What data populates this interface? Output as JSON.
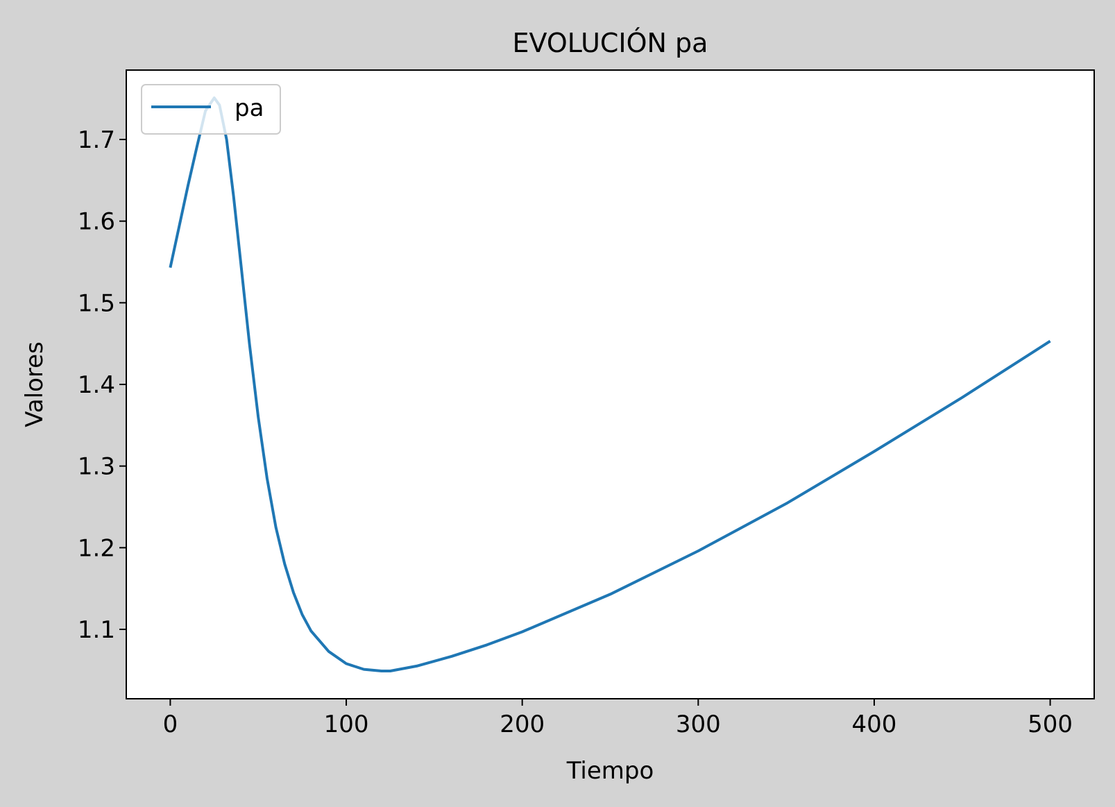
{
  "figure": {
    "background": "#d3d3d3"
  },
  "chart_data": {
    "type": "line",
    "title": "EVOLUCIÓN pa",
    "xlabel": "Tiempo",
    "ylabel": "Valores",
    "xlim": [
      -25,
      525
    ],
    "ylim": [
      1.015,
      1.785
    ],
    "xticks": [
      0,
      100,
      200,
      300,
      400,
      500
    ],
    "xtick_labels": [
      "0",
      "100",
      "200",
      "300",
      "400",
      "500"
    ],
    "yticks": [
      1.1,
      1.2,
      1.3,
      1.4,
      1.5,
      1.6,
      1.7
    ],
    "ytick_labels": [
      "1.1",
      "1.2",
      "1.3",
      "1.4",
      "1.5",
      "1.6",
      "1.7"
    ],
    "grid": false,
    "legend": {
      "position": "upper-left",
      "entries": [
        "pa"
      ]
    },
    "series": [
      {
        "name": "pa",
        "color": "#1f77b4",
        "x": [
          0,
          5,
          10,
          15,
          20,
          25,
          28,
          32,
          36,
          40,
          45,
          50,
          55,
          60,
          65,
          70,
          75,
          80,
          90,
          100,
          110,
          120,
          125,
          140,
          160,
          180,
          200,
          250,
          300,
          350,
          400,
          450,
          500
        ],
        "y": [
          1.543,
          1.593,
          1.643,
          1.69,
          1.735,
          1.751,
          1.742,
          1.7,
          1.63,
          1.55,
          1.45,
          1.36,
          1.285,
          1.225,
          1.18,
          1.145,
          1.118,
          1.098,
          1.073,
          1.058,
          1.051,
          1.049,
          1.049,
          1.055,
          1.067,
          1.081,
          1.097,
          1.143,
          1.196,
          1.254,
          1.318,
          1.384,
          1.453
        ]
      }
    ]
  }
}
